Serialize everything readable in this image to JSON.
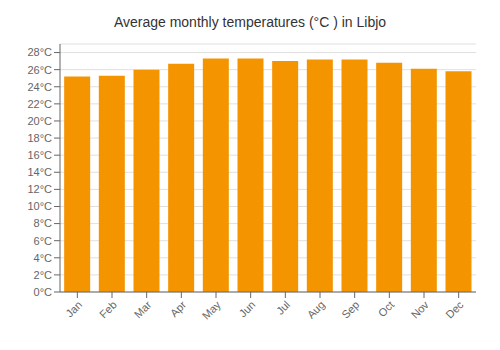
{
  "chart_data": {
    "type": "bar",
    "title": "Average monthly temperatures (°C ) in Libjo",
    "categories": [
      "Jan",
      "Feb",
      "Mar",
      "Apr",
      "May",
      "Jun",
      "Jul",
      "Aug",
      "Sep",
      "Oct",
      "Nov",
      "Dec"
    ],
    "values": [
      25.2,
      25.3,
      26.0,
      26.7,
      27.3,
      27.3,
      27.0,
      27.2,
      27.2,
      26.8,
      26.1,
      25.8
    ],
    "color": "#F49500",
    "ylim": [
      0,
      29
    ],
    "yticks": [
      {
        "value": 0,
        "label": "0°C"
      },
      {
        "value": 2,
        "label": "2°C"
      },
      {
        "value": 4,
        "label": "4°C"
      },
      {
        "value": 6,
        "label": "6°C"
      },
      {
        "value": 8,
        "label": "8°C"
      },
      {
        "value": 10,
        "label": "10°C"
      },
      {
        "value": 12,
        "label": "12°C"
      },
      {
        "value": 14,
        "label": "14°C"
      },
      {
        "value": 16,
        "label": "16°C"
      },
      {
        "value": 18,
        "label": "18°C"
      },
      {
        "value": 20,
        "label": "20°C"
      },
      {
        "value": 22,
        "label": "22°C"
      },
      {
        "value": 24,
        "label": "24°C"
      },
      {
        "value": 26,
        "label": "26°C"
      },
      {
        "value": 28,
        "label": "28°C"
      }
    ],
    "grid": true
  }
}
